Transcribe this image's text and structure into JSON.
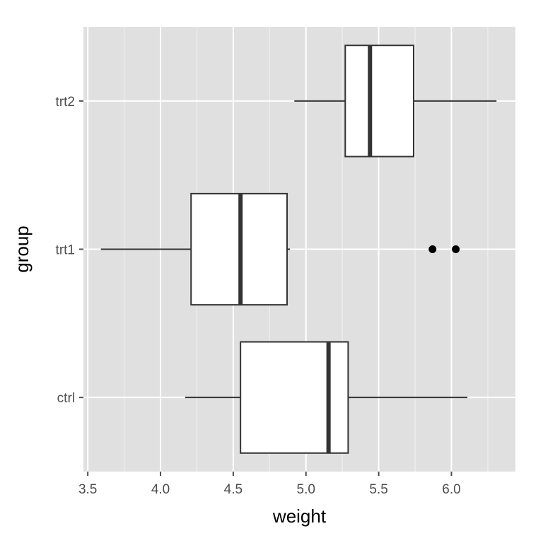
{
  "chart_data": {
    "type": "boxplot",
    "orientation": "horizontal",
    "xlabel": "weight",
    "ylabel": "group",
    "xlim": [
      3.47,
      6.44
    ],
    "x_ticks": [
      3.5,
      4.0,
      4.5,
      5.0,
      5.5,
      6.0
    ],
    "x_tick_labels": [
      "3.5",
      "4.0",
      "4.5",
      "5.0",
      "5.5",
      "6.0"
    ],
    "categories": [
      "ctrl",
      "trt1",
      "trt2"
    ],
    "boxes": [
      {
        "group": "ctrl",
        "whisker_low": 4.17,
        "q1": 4.55,
        "median": 5.155,
        "q3": 5.29,
        "whisker_high": 6.11,
        "outliers": []
      },
      {
        "group": "trt1",
        "whisker_low": 3.59,
        "q1": 4.21,
        "median": 4.55,
        "q3": 4.87,
        "whisker_high": 4.89,
        "outliers": [
          5.87,
          6.03
        ]
      },
      {
        "group": "trt2",
        "whisker_low": 4.92,
        "q1": 5.27,
        "median": 5.44,
        "q3": 5.74,
        "whisker_high": 6.31,
        "outliers": []
      }
    ],
    "grid": true,
    "panel_background": "#e0e0e0",
    "grid_color": "#ffffff",
    "box_fill": "#ffffff",
    "line_color": "#333333"
  }
}
